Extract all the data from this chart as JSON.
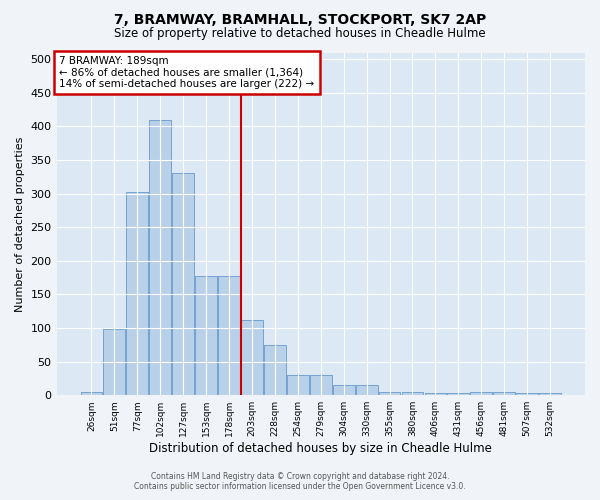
{
  "title": "7, BRAMWAY, BRAMHALL, STOCKPORT, SK7 2AP",
  "subtitle": "Size of property relative to detached houses in Cheadle Hulme",
  "xlabel": "Distribution of detached houses by size in Cheadle Hulme",
  "ylabel": "Number of detached properties",
  "footer_line1": "Contains HM Land Registry data © Crown copyright and database right 2024.",
  "footer_line2": "Contains public sector information licensed under the Open Government Licence v3.0.",
  "bar_labels": [
    "26sqm",
    "51sqm",
    "77sqm",
    "102sqm",
    "127sqm",
    "153sqm",
    "178sqm",
    "203sqm",
    "228sqm",
    "254sqm",
    "279sqm",
    "304sqm",
    "330sqm",
    "355sqm",
    "380sqm",
    "406sqm",
    "431sqm",
    "456sqm",
    "481sqm",
    "507sqm",
    "532sqm"
  ],
  "bar_values": [
    5,
    98,
    302,
    410,
    330,
    178,
    178,
    112,
    75,
    30,
    30,
    15,
    15,
    5,
    5,
    3,
    3,
    5,
    5,
    3,
    3
  ],
  "bar_color": "#b8d0e8",
  "bar_edge_color": "#6699cc",
  "bg_color": "#dce8f4",
  "grid_color": "#ffffff",
  "vline_color": "#cc0000",
  "vline_pos": 6.5,
  "annotation_text": "7 BRAMWAY: 189sqm\n← 86% of detached houses are smaller (1,364)\n14% of semi-detached houses are larger (222) →",
  "annotation_box_color": "#cc0000",
  "ylim": [
    0,
    510
  ],
  "yticks": [
    0,
    50,
    100,
    150,
    200,
    250,
    300,
    350,
    400,
    450,
    500
  ]
}
